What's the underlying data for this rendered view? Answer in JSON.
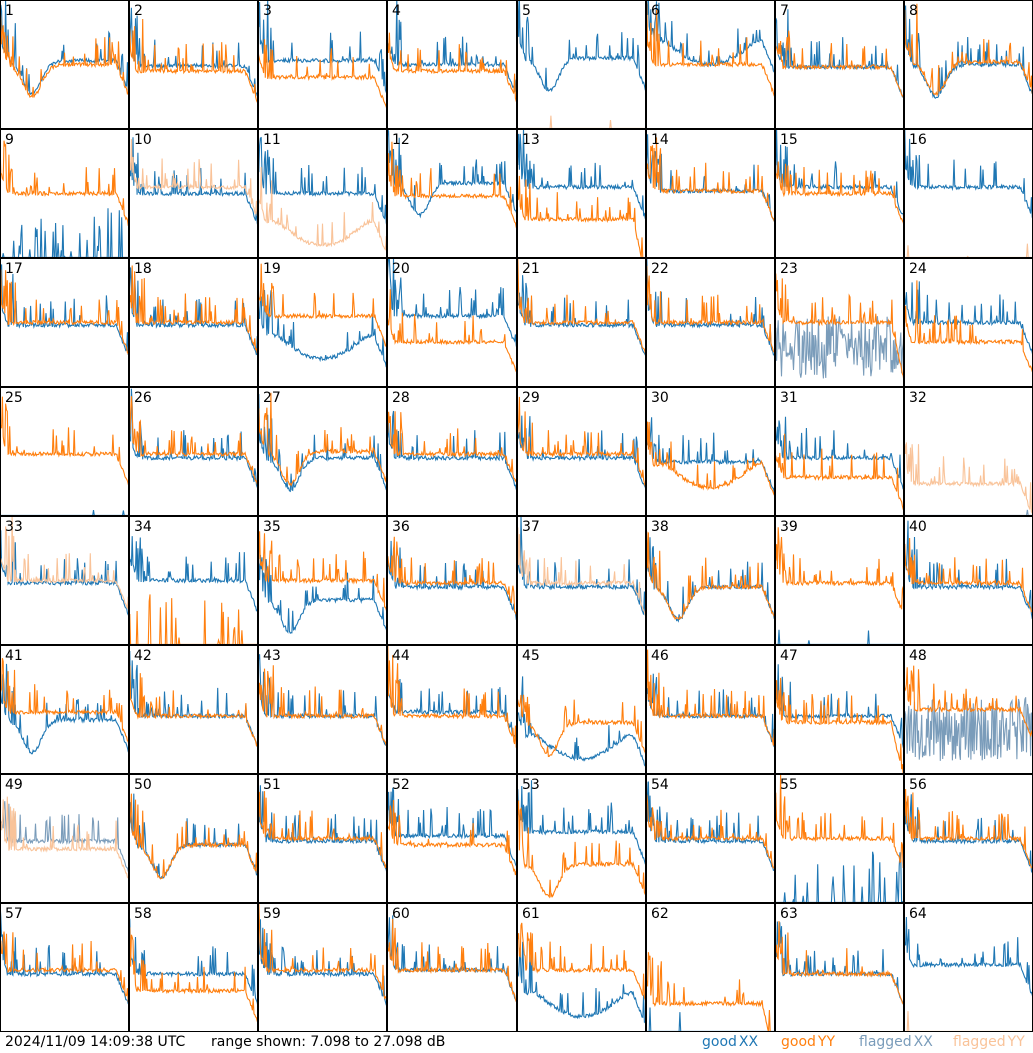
{
  "footer": {
    "timestamp": "2024/11/09 14:09:38 UTC",
    "range_text": "range shown: 7.098 to 27.098 dB"
  },
  "legend": [
    {
      "word": "good",
      "pol": "XX",
      "color": "#1f77b4"
    },
    {
      "word": "good",
      "pol": "YY",
      "color": "#ff7f0e"
    },
    {
      "word": "flagged",
      "pol": "XX",
      "color": "#7a9cba"
    },
    {
      "word": "flagged",
      "pol": "YY",
      "color": "#f9c399"
    }
  ],
  "colors": {
    "good_xx": "#1f77b4",
    "good_yy": "#ff7f0e",
    "flagged_xx": "#7a9cba",
    "flagged_yy": "#f9c399",
    "grid_line": "#000000"
  },
  "chart_data": {
    "type": "line",
    "title": "",
    "units": "dB",
    "ylim": [
      7.098,
      27.098
    ],
    "layout": "8x8 grid of per-antenna spectra",
    "panels": [
      {
        "id": 1,
        "xx": {
          "level": 0.53,
          "shape": "dip",
          "flagged": false
        },
        "yy": {
          "level": 0.5,
          "shape": "dip",
          "flagged": false
        }
      },
      {
        "id": 2,
        "xx": {
          "level": 0.49,
          "shape": "flat",
          "flagged": false
        },
        "yy": {
          "level": 0.45,
          "shape": "flat",
          "flagged": false
        }
      },
      {
        "id": 3,
        "xx": {
          "level": 0.53,
          "shape": "flat",
          "flagged": false
        },
        "yy": {
          "level": 0.4,
          "shape": "flat",
          "flagged": false
        }
      },
      {
        "id": 4,
        "xx": {
          "level": 0.5,
          "shape": "flat",
          "flagged": false
        },
        "yy": {
          "level": 0.45,
          "shape": "flat",
          "flagged": false
        }
      },
      {
        "id": 5,
        "xx": {
          "level": 0.55,
          "shape": "dip",
          "flagged": false
        },
        "yy": {
          "level": 0.0,
          "shape": "zero",
          "flagged": true
        }
      },
      {
        "id": 6,
        "xx": {
          "level": 0.68,
          "shape": "bowl",
          "flagged": false
        },
        "yy": {
          "level": 0.5,
          "shape": "flat",
          "flagged": false
        }
      },
      {
        "id": 7,
        "xx": {
          "level": 0.48,
          "shape": "flat",
          "flagged": false
        },
        "yy": {
          "level": 0.48,
          "shape": "flat",
          "flagged": false
        }
      },
      {
        "id": 8,
        "xx": {
          "level": 0.5,
          "shape": "dip",
          "flagged": false
        },
        "yy": {
          "level": 0.52,
          "shape": "dip",
          "flagged": false
        }
      },
      {
        "id": 9,
        "xx": {
          "level": 0.05,
          "shape": "sparse",
          "flagged": false
        },
        "yy": {
          "level": 0.5,
          "shape": "flat",
          "flagged": false
        }
      },
      {
        "id": 10,
        "xx": {
          "level": 0.5,
          "shape": "flat",
          "flagged": false
        },
        "yy": {
          "level": 0.55,
          "shape": "flat",
          "flagged": true
        }
      },
      {
        "id": 11,
        "xx": {
          "level": 0.5,
          "shape": "flat",
          "flagged": false
        },
        "yy": {
          "level": 0.28,
          "shape": "bowl",
          "flagged": true
        }
      },
      {
        "id": 12,
        "xx": {
          "level": 0.58,
          "shape": "dip",
          "flagged": false
        },
        "yy": {
          "level": 0.48,
          "shape": "flat",
          "flagged": false
        }
      },
      {
        "id": 13,
        "xx": {
          "level": 0.55,
          "shape": "flat",
          "flagged": false
        },
        "yy": {
          "level": 0.3,
          "shape": "droop",
          "flagged": false
        }
      },
      {
        "id": 14,
        "xx": {
          "level": 0.52,
          "shape": "flat",
          "flagged": false
        },
        "yy": {
          "level": 0.52,
          "shape": "flat",
          "flagged": false
        }
      },
      {
        "id": 15,
        "xx": {
          "level": 0.55,
          "shape": "flat",
          "flagged": false
        },
        "yy": {
          "level": 0.5,
          "shape": "flat",
          "flagged": false
        }
      },
      {
        "id": 16,
        "xx": {
          "level": 0.55,
          "shape": "flat",
          "flagged": false
        },
        "yy": {
          "level": 0.0,
          "shape": "zero",
          "flagged": true
        }
      },
      {
        "id": 17,
        "xx": {
          "level": 0.48,
          "shape": "flat",
          "flagged": false
        },
        "yy": {
          "level": 0.5,
          "shape": "flat",
          "flagged": false
        }
      },
      {
        "id": 18,
        "xx": {
          "level": 0.48,
          "shape": "flat",
          "flagged": false
        },
        "yy": {
          "level": 0.5,
          "shape": "flat",
          "flagged": false
        }
      },
      {
        "id": 19,
        "xx": {
          "level": 0.4,
          "shape": "bowl",
          "flagged": false
        },
        "yy": {
          "level": 0.55,
          "shape": "flat",
          "flagged": false
        }
      },
      {
        "id": 20,
        "xx": {
          "level": 0.55,
          "shape": "flat",
          "flagged": false
        },
        "yy": {
          "level": 0.35,
          "shape": "flat",
          "flagged": false
        }
      },
      {
        "id": 21,
        "xx": {
          "level": 0.48,
          "shape": "flat",
          "flagged": false
        },
        "yy": {
          "level": 0.5,
          "shape": "flat",
          "flagged": false
        }
      },
      {
        "id": 22,
        "xx": {
          "level": 0.48,
          "shape": "flat",
          "flagged": false
        },
        "yy": {
          "level": 0.5,
          "shape": "flat",
          "flagged": false
        }
      },
      {
        "id": 23,
        "xx": {
          "level": 0.3,
          "shape": "noisy",
          "flagged": true
        },
        "yy": {
          "level": 0.5,
          "shape": "droop",
          "flagged": false
        }
      },
      {
        "id": 24,
        "xx": {
          "level": 0.5,
          "shape": "flat",
          "flagged": false
        },
        "yy": {
          "level": 0.35,
          "shape": "flat",
          "flagged": false
        }
      },
      {
        "id": 25,
        "xx": {
          "level": 0.0,
          "shape": "zero",
          "flagged": false
        },
        "yy": {
          "level": 0.48,
          "shape": "flat",
          "flagged": false
        }
      },
      {
        "id": 26,
        "xx": {
          "level": 0.45,
          "shape": "flat",
          "flagged": false
        },
        "yy": {
          "level": 0.48,
          "shape": "flat",
          "flagged": false
        }
      },
      {
        "id": 27,
        "xx": {
          "level": 0.45,
          "shape": "dip",
          "flagged": false
        },
        "yy": {
          "level": 0.5,
          "shape": "dip",
          "flagged": false
        }
      },
      {
        "id": 28,
        "xx": {
          "level": 0.45,
          "shape": "flat",
          "flagged": false
        },
        "yy": {
          "level": 0.48,
          "shape": "flat",
          "flagged": false
        }
      },
      {
        "id": 29,
        "xx": {
          "level": 0.45,
          "shape": "flat",
          "flagged": false
        },
        "yy": {
          "level": 0.48,
          "shape": "flat",
          "flagged": false
        }
      },
      {
        "id": 30,
        "xx": {
          "level": 0.42,
          "shape": "flat",
          "flagged": false
        },
        "yy": {
          "level": 0.4,
          "shape": "bowl",
          "flagged": false
        }
      },
      {
        "id": 31,
        "xx": {
          "level": 0.45,
          "shape": "flat",
          "flagged": false
        },
        "yy": {
          "level": 0.3,
          "shape": "flat",
          "flagged": false
        }
      },
      {
        "id": 32,
        "xx": {
          "level": 0.0,
          "shape": "zero",
          "flagged": true
        },
        "yy": {
          "level": 0.25,
          "shape": "flat",
          "flagged": true
        }
      },
      {
        "id": 33,
        "xx": {
          "level": 0.48,
          "shape": "flat",
          "flagged": false
        },
        "yy": {
          "level": 0.5,
          "shape": "flat",
          "flagged": true
        }
      },
      {
        "id": 34,
        "xx": {
          "level": 0.5,
          "shape": "flat",
          "flagged": false
        },
        "yy": {
          "level": 0.05,
          "shape": "sparse",
          "flagged": false
        }
      },
      {
        "id": 35,
        "xx": {
          "level": 0.35,
          "shape": "dip",
          "flagged": false
        },
        "yy": {
          "level": 0.5,
          "shape": "flat",
          "flagged": false
        }
      },
      {
        "id": 36,
        "xx": {
          "level": 0.45,
          "shape": "flat",
          "flagged": false
        },
        "yy": {
          "level": 0.48,
          "shape": "flat",
          "flagged": false
        }
      },
      {
        "id": 37,
        "xx": {
          "level": 0.45,
          "shape": "flat",
          "flagged": false
        },
        "yy": {
          "level": 0.48,
          "shape": "flat",
          "flagged": true
        }
      },
      {
        "id": 38,
        "xx": {
          "level": 0.45,
          "shape": "dip",
          "flagged": false
        },
        "yy": {
          "level": 0.45,
          "shape": "dip",
          "flagged": false
        }
      },
      {
        "id": 39,
        "xx": {
          "level": 0.0,
          "shape": "zero",
          "flagged": false
        },
        "yy": {
          "level": 0.48,
          "shape": "flat",
          "flagged": false
        }
      },
      {
        "id": 40,
        "xx": {
          "level": 0.45,
          "shape": "flat",
          "flagged": false
        },
        "yy": {
          "level": 0.48,
          "shape": "flat",
          "flagged": false
        }
      },
      {
        "id": 41,
        "xx": {
          "level": 0.42,
          "shape": "dip",
          "flagged": false
        },
        "yy": {
          "level": 0.48,
          "shape": "flat",
          "flagged": false
        }
      },
      {
        "id": 42,
        "xx": {
          "level": 0.45,
          "shape": "flat",
          "flagged": false
        },
        "yy": {
          "level": 0.45,
          "shape": "flat",
          "flagged": false
        }
      },
      {
        "id": 43,
        "xx": {
          "level": 0.45,
          "shape": "flat",
          "flagged": false
        },
        "yy": {
          "level": 0.45,
          "shape": "flat",
          "flagged": false
        }
      },
      {
        "id": 44,
        "xx": {
          "level": 0.48,
          "shape": "flat",
          "flagged": false
        },
        "yy": {
          "level": 0.45,
          "shape": "flat",
          "flagged": false
        }
      },
      {
        "id": 45,
        "xx": {
          "level": 0.3,
          "shape": "bowl",
          "flagged": false
        },
        "yy": {
          "level": 0.4,
          "shape": "dip",
          "flagged": false
        }
      },
      {
        "id": 46,
        "xx": {
          "level": 0.45,
          "shape": "flat",
          "flagged": false
        },
        "yy": {
          "level": 0.45,
          "shape": "flat",
          "flagged": false
        }
      },
      {
        "id": 47,
        "xx": {
          "level": 0.45,
          "shape": "flat",
          "flagged": false
        },
        "yy": {
          "level": 0.4,
          "shape": "droop",
          "flagged": false
        }
      },
      {
        "id": 48,
        "xx": {
          "level": 0.35,
          "shape": "noisy",
          "flagged": true
        },
        "yy": {
          "level": 0.5,
          "shape": "flat",
          "flagged": false
        }
      },
      {
        "id": 49,
        "xx": {
          "level": 0.48,
          "shape": "flat",
          "flagged": true
        },
        "yy": {
          "level": 0.42,
          "shape": "flat",
          "flagged": true
        }
      },
      {
        "id": 50,
        "xx": {
          "level": 0.45,
          "shape": "dip",
          "flagged": false
        },
        "yy": {
          "level": 0.45,
          "shape": "dip",
          "flagged": false
        }
      },
      {
        "id": 51,
        "xx": {
          "level": 0.48,
          "shape": "flat",
          "flagged": false
        },
        "yy": {
          "level": 0.5,
          "shape": "flat",
          "flagged": false
        }
      },
      {
        "id": 52,
        "xx": {
          "level": 0.52,
          "shape": "flat",
          "flagged": false
        },
        "yy": {
          "level": 0.45,
          "shape": "flat",
          "flagged": false
        }
      },
      {
        "id": 53,
        "xx": {
          "level": 0.55,
          "shape": "flat",
          "flagged": false
        },
        "yy": {
          "level": 0.3,
          "shape": "dip",
          "flagged": false
        }
      },
      {
        "id": 54,
        "xx": {
          "level": 0.48,
          "shape": "flat",
          "flagged": false
        },
        "yy": {
          "level": 0.5,
          "shape": "flat",
          "flagged": false
        }
      },
      {
        "id": 55,
        "xx": {
          "level": 0.05,
          "shape": "sparse",
          "flagged": false
        },
        "yy": {
          "level": 0.5,
          "shape": "flat",
          "flagged": false
        }
      },
      {
        "id": 56,
        "xx": {
          "level": 0.48,
          "shape": "flat",
          "flagged": false
        },
        "yy": {
          "level": 0.5,
          "shape": "flat",
          "flagged": false
        }
      },
      {
        "id": 57,
        "xx": {
          "level": 0.45,
          "shape": "flat",
          "flagged": false
        },
        "yy": {
          "level": 0.48,
          "shape": "flat",
          "flagged": false
        }
      },
      {
        "id": 58,
        "xx": {
          "level": 0.45,
          "shape": "flat",
          "flagged": false
        },
        "yy": {
          "level": 0.32,
          "shape": "flat",
          "flagged": false
        }
      },
      {
        "id": 59,
        "xx": {
          "level": 0.45,
          "shape": "flat",
          "flagged": false
        },
        "yy": {
          "level": 0.48,
          "shape": "flat",
          "flagged": false
        }
      },
      {
        "id": 60,
        "xx": {
          "level": 0.48,
          "shape": "flat",
          "flagged": false
        },
        "yy": {
          "level": 0.48,
          "shape": "flat",
          "flagged": false
        }
      },
      {
        "id": 61,
        "xx": {
          "level": 0.3,
          "shape": "bowl",
          "flagged": false
        },
        "yy": {
          "level": 0.48,
          "shape": "flat",
          "flagged": false
        }
      },
      {
        "id": 62,
        "xx": {
          "level": 0.0,
          "shape": "zero",
          "flagged": false
        },
        "yy": {
          "level": 0.22,
          "shape": "droop",
          "flagged": false
        }
      },
      {
        "id": 63,
        "xx": {
          "level": 0.45,
          "shape": "flat",
          "flagged": false
        },
        "yy": {
          "level": 0.45,
          "shape": "flat",
          "flagged": false
        }
      },
      {
        "id": 64,
        "xx": {
          "level": 0.52,
          "shape": "flat",
          "flagged": false
        },
        "yy": {
          "level": 0.0,
          "shape": "zero",
          "flagged": true
        }
      }
    ]
  }
}
